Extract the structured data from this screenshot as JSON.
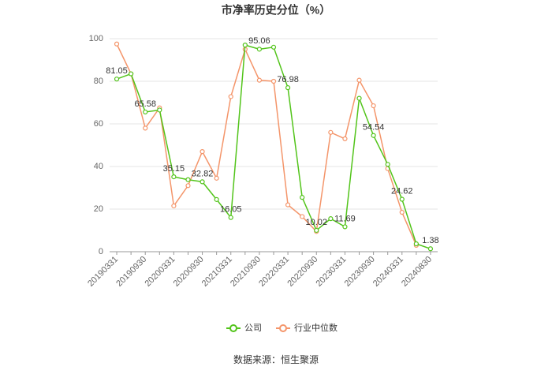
{
  "chart_data": {
    "type": "line",
    "title": "市净率历史分位（%）",
    "categories": [
      "20190331",
      null,
      "20190930",
      null,
      "20200331",
      null,
      "20200930",
      null,
      "20210331",
      null,
      "20210930",
      null,
      "20220331",
      null,
      "20220930",
      null,
      "20230331",
      null,
      "20230930",
      null,
      "20240331",
      null,
      "20240830"
    ],
    "series": [
      {
        "name": "公司",
        "color": "#52c41a",
        "values": [
          81.05,
          83.5,
          65.58,
          66.5,
          35.15,
          33.8,
          32.82,
          24.5,
          16.05,
          97,
          95.06,
          96,
          76.98,
          25.5,
          10.02,
          15.5,
          11.69,
          72,
          54.54,
          41,
          24.62,
          3.7,
          1.38
        ],
        "value_labels": [
          "81.05",
          null,
          "65.58",
          null,
          "35.15",
          null,
          "32.82",
          null,
          "16.05",
          null,
          "95.06",
          null,
          "76.98",
          null,
          "10.02",
          null,
          "11.69",
          null,
          "54.54",
          null,
          "24.62",
          null,
          "1.38"
        ]
      },
      {
        "name": "行业中位数",
        "color": "#f4956a",
        "values": [
          97.5,
          83.5,
          58,
          67.5,
          21.5,
          31,
          47,
          34.5,
          72.8,
          95,
          80.5,
          80,
          22,
          16.5,
          9.5,
          56,
          53,
          80.5,
          68.5,
          39,
          18.5,
          3,
          null
        ]
      }
    ],
    "ylim": [
      0,
      100
    ],
    "yticks": [
      0,
      20,
      40,
      60,
      80,
      100
    ],
    "grid": true,
    "legend": "bottom",
    "source": "数据来源：恒生聚源"
  }
}
